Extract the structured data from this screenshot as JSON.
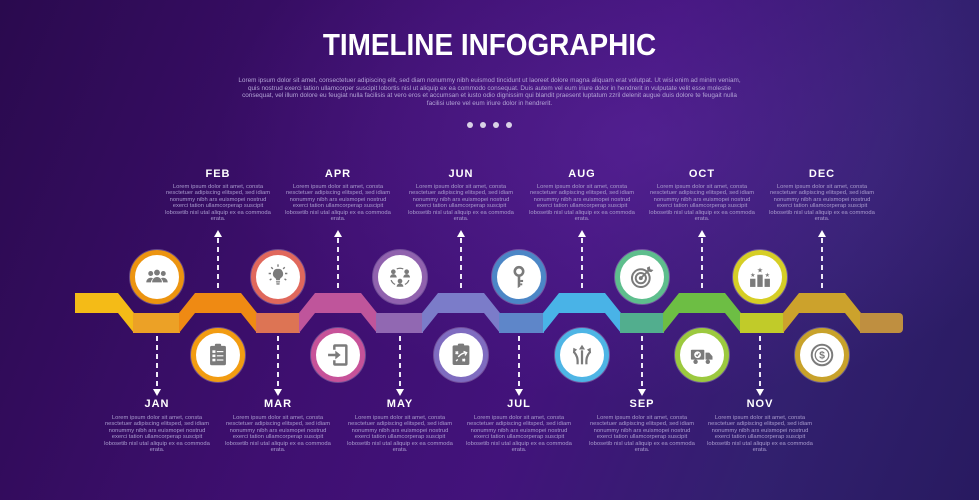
{
  "header": {
    "title": "TIMELINE INFOGRAPHIC",
    "subtitle": "Lorem ipsum dolor sit amet, consectetuer adipiscing elit, sed diam nonummy nibh euismod tincidunt ut laoreet dolore magna aliquam erat volutpat. Ut wisi enim ad minim veniam, quis nostrud exerci tation ullamcorper suscipit lobortis nisl ut aliquip ex ea commodo consequat. Duis autem vel eum iriure dolor in hendrerit in vulputate velit esse molestie consequat, vel illum dolore eu feugiat nulla facilisis at vero eros et accumsan et iusto odio dignissim qui blandit praesent luptatum zzril delenit augue duis dolore te feugait nulla facilisi utere vel eum iriure dolor in hendrerit.",
    "dots_count": 4
  },
  "timeline": {
    "months": [
      {
        "label": "JAN",
        "side": "bottom",
        "icon": "team-icon",
        "ring_color": "#EC9410",
        "description": "Lorem ipsum dolor sit amet, consta nesctetuer adipiscing elitsped, sed idiam nonummy nibh ars euismopei nostrud exerci tation ullamcorperap suscipit lobosetib nisl utal aliquip ex ea commoda erata."
      },
      {
        "label": "FEB",
        "side": "top",
        "icon": "checklist-icon",
        "ring_color": "#F29C12",
        "description": "Lorem ipsum dolor sit amet, consta nesctetuer adipiscing elitsped, sed idiam nonummy nibh ars euismopei nostrud exerci tation ullamcorperap suscipit lobosetib nisl utal aliquip ex ea commoda erata."
      },
      {
        "label": "MAR",
        "side": "bottom",
        "icon": "idea-icon",
        "ring_color": "#E0685C",
        "description": "Lorem ipsum dolor sit amet, consta nesctetuer adipiscing elitsped, sed idiam nonummy nibh ars euismopei nostrud exerci tation ullamcorperap suscipit lobosetib nisl utal aliquip ex ea commoda erata."
      },
      {
        "label": "APR",
        "side": "top",
        "icon": "login-icon",
        "ring_color": "#C75299",
        "description": "Lorem ipsum dolor sit amet, consta nesctetuer adipiscing elitsped, sed idiam nonummy nibh ars euismopei nostrud exerci tation ullamcorperap suscipit lobosetib nisl utal aliquip ex ea commoda erata."
      },
      {
        "label": "MAY",
        "side": "bottom",
        "icon": "network-icon",
        "ring_color": "#9062AE",
        "description": "Lorem ipsum dolor sit amet, consta nesctetuer adipiscing elitsped, sed idiam nonummy nibh ars euismopei nostrud exerci tation ullamcorperap suscipit lobosetib nisl utal aliquip ex ea commoda erata."
      },
      {
        "label": "JUN",
        "side": "top",
        "icon": "strategy-icon",
        "ring_color": "#7F6CC0",
        "description": "Lorem ipsum dolor sit amet, consta nesctetuer adipiscing elitsped, sed idiam nonummy nibh ars euismopei nostrud exerci tation ullamcorperap suscipit lobosetib nisl utal aliquip ex ea commoda erata."
      },
      {
        "label": "JUL",
        "side": "bottom",
        "icon": "key-icon",
        "ring_color": "#4C86C6",
        "description": "Lorem ipsum dolor sit amet, consta nesctetuer adipiscing elitsped, sed idiam nonummy nibh ars euismopei nostrud exerci tation ullamcorperap suscipit lobosetib nisl utal aliquip ex ea commoda erata."
      },
      {
        "label": "AUG",
        "side": "top",
        "icon": "directions-icon",
        "ring_color": "#4EB5E5",
        "description": "Lorem ipsum dolor sit amet, consta nesctetuer adipiscing elitsped, sed idiam nonummy nibh ars euismopei nostrud exerci tation ullamcorperap suscipit lobosetib nisl utal aliquip ex ea commoda erata."
      },
      {
        "label": "SEP",
        "side": "bottom",
        "icon": "target-icon",
        "ring_color": "#5EBE8D",
        "description": "Lorem ipsum dolor sit amet, consta nesctetuer adipiscing elitsped, sed idiam nonummy nibh ars euismopei nostrud exerci tation ullamcorperap suscipit lobosetib nisl utal aliquip ex ea commoda erata."
      },
      {
        "label": "OCT",
        "side": "top",
        "icon": "delivery-icon",
        "ring_color": "#9CC93F",
        "description": "Lorem ipsum dolor sit amet, consta nesctetuer adipiscing elitsped, sed idiam nonummy nibh ars euismopei nostrud exerci tation ullamcorperap suscipit lobosetib nisl utal aliquip ex ea commoda erata."
      },
      {
        "label": "NOV",
        "side": "bottom",
        "icon": "ranking-icon",
        "ring_color": "#D6CE26",
        "description": "Lorem ipsum dolor sit amet, consta nesctetuer adipiscing elitsped, sed idiam nonummy nibh ars euismopei nostrud exerci tation ullamcorperap suscipit lobosetib nisl utal aliquip ex ea commoda erata."
      },
      {
        "label": "DEC",
        "side": "top",
        "icon": "money-icon",
        "ring_color": "#C8A22B",
        "description": "Lorem ipsum dolor sit amet, consta nesctetuer adipiscing elitsped, sed idiam nonummy nibh ars euismopei nostrud exerci tation ullamcorperap suscipit lobosetib nisl utal aliquip ex ea commoda erata."
      }
    ]
  },
  "ribbon": {
    "segment_colors": [
      "#F4BB17",
      "#ECA126",
      "#EF8A13",
      "#DD7454",
      "#BF559B",
      "#9168B2",
      "#7B7CC9",
      "#5E86C9",
      "#49B3E7",
      "#52AE8E",
      "#6DBE44",
      "#C1CB29",
      "#CCA22C",
      "#BF8F40"
    ]
  },
  "colors": {
    "background_purple": "#3E0F70",
    "title_white": "#FFFFFF",
    "body_lavender": "#A99CCE",
    "icon_gray": "#7B7B7B"
  }
}
